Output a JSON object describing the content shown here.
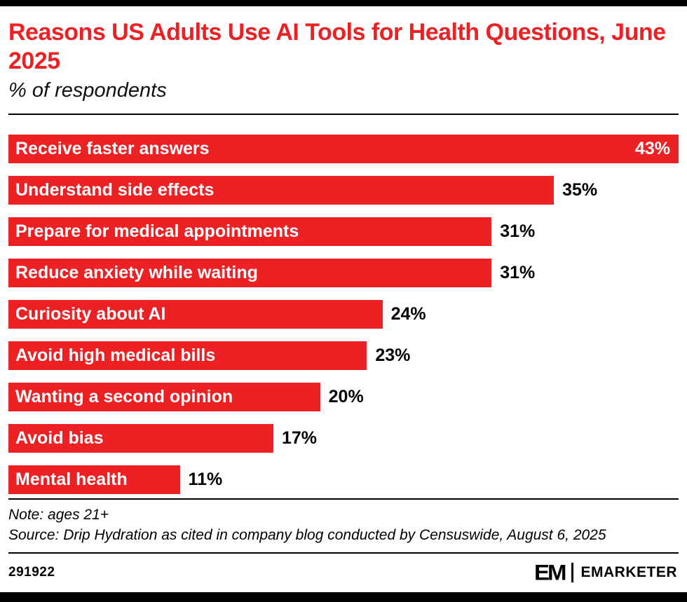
{
  "accent_color": "#ED2124",
  "header": {
    "title": "Reasons US Adults Use AI Tools for Health Questions, June 2025",
    "subtitle": "% of respondents"
  },
  "chart_data": {
    "type": "bar",
    "orientation": "horizontal",
    "title": "Reasons US Adults Use AI Tools for Health Questions, June 2025",
    "subtitle": "% of respondents",
    "categories": [
      "Receive faster answers",
      "Understand side effects",
      "Prepare for medical appointments",
      "Reduce anxiety while waiting",
      "Curiosity about AI",
      "Avoid high medical bills",
      "Wanting a second opinion",
      "Avoid bias",
      "Mental health"
    ],
    "values": [
      43,
      35,
      31,
      31,
      24,
      23,
      20,
      17,
      11
    ],
    "value_suffix": "%",
    "xlim": [
      0,
      43
    ],
    "bar_color": "#ED2124",
    "category_label_color": "#ffffff",
    "value_label_color": "#000000",
    "max_value_label_position": "inside-right",
    "grid": false,
    "legend": false
  },
  "footnotes": {
    "note": "Note: ages 21+",
    "source": "Source: Drip Hydration as cited in company blog conducted by Censuswide, August 6, 2025"
  },
  "footer": {
    "chart_id": "291922",
    "logo_monogram": "EM",
    "logo_text": "EMARKETER"
  }
}
